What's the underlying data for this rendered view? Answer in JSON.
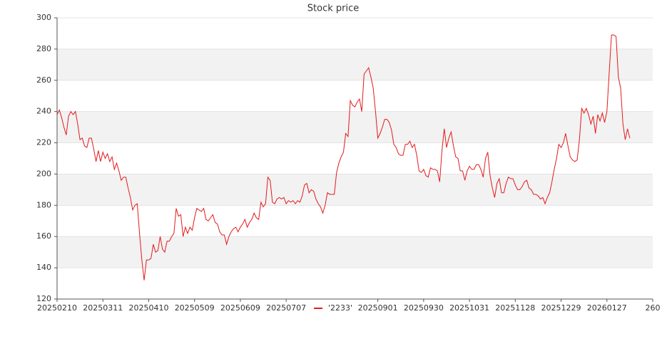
{
  "chart_data": {
    "type": "line",
    "title": "Stock price",
    "x": [
      0,
      1,
      2,
      3,
      4,
      5,
      6,
      7,
      8,
      9,
      10,
      11,
      12,
      13,
      14,
      15,
      16,
      17,
      18,
      19,
      20,
      21,
      22,
      23,
      24,
      25,
      26,
      27,
      28,
      29,
      30,
      31,
      32,
      33,
      34,
      35,
      36,
      37,
      38,
      39,
      40,
      41,
      42,
      43,
      44,
      45,
      46,
      47,
      48,
      49,
      50,
      51,
      52,
      53,
      54,
      55,
      56,
      57,
      58,
      59,
      60,
      61,
      62,
      63,
      64,
      65,
      66,
      67,
      68,
      69,
      70,
      71,
      72,
      73,
      74,
      75,
      76,
      77,
      78,
      79,
      80,
      81,
      82,
      83,
      84,
      85,
      86,
      87,
      88,
      89,
      90,
      91,
      92,
      93,
      94,
      95,
      96,
      97,
      98,
      99,
      100,
      101,
      102,
      103,
      104,
      105,
      106,
      107,
      108,
      109,
      110,
      111,
      112,
      113,
      114,
      115,
      116,
      117,
      118,
      119,
      120,
      121,
      122,
      123,
      124,
      125,
      126,
      127,
      128,
      129,
      130,
      131,
      132,
      133,
      134,
      135,
      136,
      137,
      138,
      139,
      140,
      141,
      142,
      143,
      144,
      145,
      146,
      147,
      148,
      149,
      150,
      151,
      152,
      153,
      154,
      155,
      156,
      157,
      158,
      159,
      160,
      161,
      162,
      163,
      164,
      165,
      166,
      167,
      168,
      169,
      170,
      171,
      172,
      173,
      174,
      175,
      176,
      177,
      178,
      179,
      180,
      181,
      182,
      183,
      184,
      185,
      186,
      187,
      188,
      189,
      190,
      191,
      192,
      193,
      194,
      195,
      196,
      197,
      198,
      199,
      200,
      201,
      202,
      203,
      204,
      205,
      206,
      207,
      208,
      209,
      210,
      211,
      212,
      213,
      214,
      215,
      216,
      217,
      218,
      219,
      220,
      221,
      222,
      223,
      224,
      225,
      226,
      227,
      228,
      229,
      230,
      231,
      232,
      233,
      234,
      235,
      236,
      237,
      238,
      239,
      240,
      241,
      242,
      243,
      244,
      245,
      246,
      247,
      248,
      249,
      250
    ],
    "series": [
      {
        "name": "'2233'",
        "color": "#e31a1c",
        "values": [
          238,
          241,
          236,
          230,
          225,
          237,
          240,
          238,
          240,
          232,
          222,
          223,
          218,
          217,
          223,
          223,
          216,
          208,
          215,
          208,
          214,
          210,
          213,
          208,
          211,
          203,
          207,
          202,
          196,
          198,
          198,
          191,
          185,
          177,
          180,
          181,
          162,
          145,
          132,
          145,
          145,
          146,
          155,
          150,
          151,
          160,
          152,
          150,
          157,
          157,
          160,
          162,
          178,
          173,
          174,
          160,
          166,
          162,
          166,
          164,
          172,
          178,
          177,
          176,
          178,
          171,
          170,
          172,
          174,
          169,
          168,
          163,
          161,
          161,
          155,
          160,
          163,
          165,
          166,
          163,
          166,
          168,
          171,
          166,
          169,
          171,
          175,
          172,
          171,
          182,
          179,
          181,
          198,
          196,
          182,
          181,
          184,
          185,
          184,
          185,
          181,
          183,
          182,
          183,
          181,
          183,
          182,
          186,
          193,
          194,
          188,
          190,
          189,
          184,
          181,
          179,
          175,
          180,
          188,
          187,
          187,
          187,
          201,
          207,
          211,
          214,
          226,
          224,
          247,
          244,
          243,
          246,
          248,
          240,
          264,
          266,
          268,
          262,
          255,
          240,
          223,
          226,
          230,
          235,
          235,
          233,
          228,
          219,
          217,
          213,
          212,
          212,
          219,
          219,
          221,
          217,
          219,
          212,
          202,
          201,
          203,
          199,
          198,
          204,
          203,
          203,
          202,
          195,
          215,
          229,
          217,
          223,
          227,
          218,
          211,
          210,
          202,
          202,
          196,
          202,
          205,
          203,
          203,
          206,
          206,
          203,
          198,
          210,
          214,
          199,
          191,
          185,
          194,
          197,
          188,
          188,
          194,
          198,
          197,
          197,
          193,
          190,
          190,
          192,
          195,
          196,
          191,
          190,
          187,
          187,
          186,
          184,
          185,
          181,
          185,
          188,
          195,
          203,
          210,
          219,
          217,
          220,
          226,
          218,
          211,
          209,
          208,
          209,
          222,
          242,
          239,
          242,
          238,
          232,
          237,
          226,
          238,
          234,
          239,
          233,
          240,
          265,
          289,
          289,
          288,
          262,
          255,
          232,
          222,
          229,
          223
        ]
      }
    ],
    "xlim": [
      0,
      260
    ],
    "xticks": [
      {
        "value": 0,
        "label": "20250210"
      },
      {
        "value": 20,
        "label": "20250311"
      },
      {
        "value": 40,
        "label": "20250410"
      },
      {
        "value": 60,
        "label": "20250509"
      },
      {
        "value": 80,
        "label": "20250609"
      },
      {
        "value": 100,
        "label": "20250707"
      },
      {
        "value": 140,
        "label": "20250901"
      },
      {
        "value": 160,
        "label": "20250930"
      },
      {
        "value": 180,
        "label": "20251031"
      },
      {
        "value": 200,
        "label": "20251128"
      },
      {
        "value": 220,
        "label": "20251229"
      },
      {
        "value": 240,
        "label": "20260127"
      },
      {
        "value": 260,
        "label": "260"
      }
    ],
    "ylim": [
      120,
      300
    ],
    "yticks": [
      120,
      140,
      160,
      180,
      200,
      220,
      240,
      260,
      280,
      300
    ],
    "grid": true,
    "band_color": "#f2f2f2",
    "legend": "bottom"
  }
}
